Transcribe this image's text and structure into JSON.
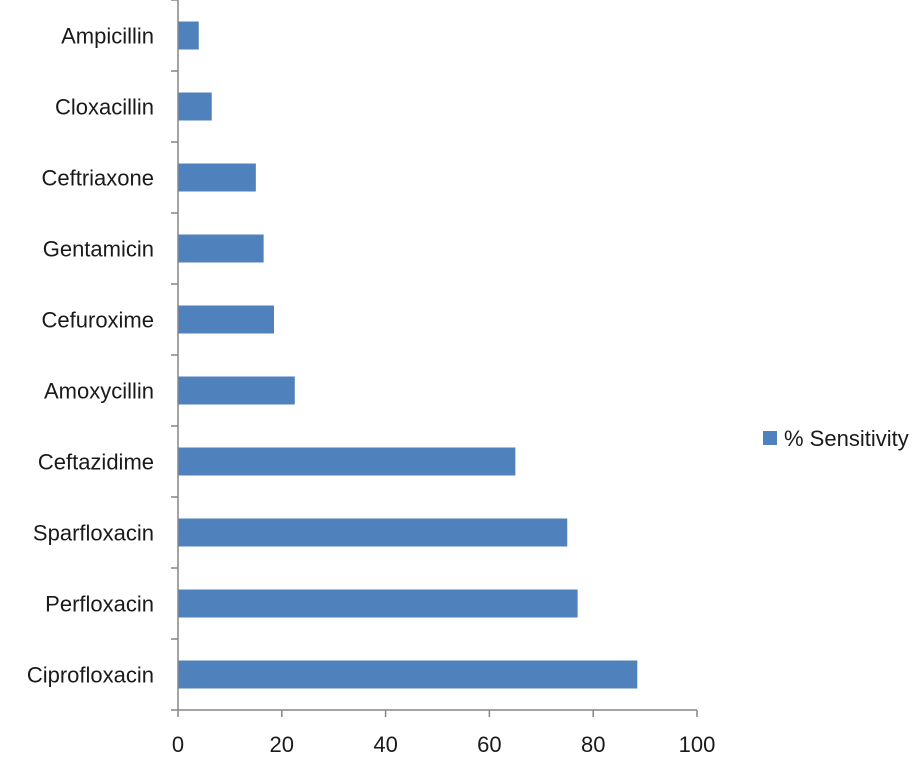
{
  "chart_data": {
    "type": "bar",
    "orientation": "horizontal",
    "title": "",
    "xlabel": "",
    "ylabel": "",
    "categories": [
      "Ampicillin",
      "Cloxacillin",
      "Ceftriaxone",
      "Gentamicin",
      "Cefuroxime",
      "Amoxycillin",
      "Ceftazidime",
      "Sparfloxacin",
      "Perfloxacin",
      "Ciprofloxacin"
    ],
    "series": [
      {
        "name": "% Sensitivity",
        "color": "#4f81bd",
        "values": [
          4,
          6.5,
          15,
          16.5,
          18.5,
          22.5,
          65,
          75,
          77,
          88.5
        ]
      }
    ],
    "xlim": [
      0,
      100
    ],
    "xticks": [
      0,
      20,
      40,
      60,
      80,
      100
    ],
    "grid": false,
    "legend": "right"
  }
}
